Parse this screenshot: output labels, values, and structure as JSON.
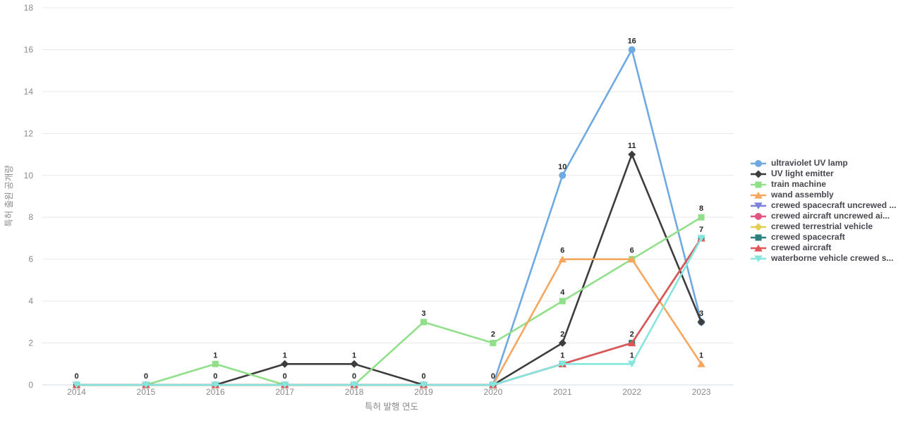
{
  "chart_data": {
    "type": "line",
    "title": "",
    "xlabel": "특허 발행 연도",
    "ylabel": "특허 출원 공개량",
    "x": [
      "2014",
      "2015",
      "2016",
      "2017",
      "2018",
      "2019",
      "2020",
      "2021",
      "2022",
      "2023"
    ],
    "ylim": [
      0,
      18
    ],
    "ytick_step": 2,
    "grid": true,
    "legend_position": "right",
    "point_labels": true,
    "colors": {
      "grid": "#E8E8E8",
      "baseline": "#CFDCE4",
      "axis_text": "#8A8A8A",
      "point_label": "#262626",
      "legend_text": "#47474F"
    },
    "series": [
      {
        "name": "ultraviolet UV lamp",
        "slug": "ultraviolet-uv-lamp",
        "color": "#6FA9E2",
        "marker": "circle",
        "values": [
          0,
          0,
          0,
          0,
          0,
          0,
          0,
          10,
          16,
          3
        ]
      },
      {
        "name": "UV light emitter",
        "slug": "uv-light-emitter",
        "color": "#3D3D3D",
        "marker": "diamond",
        "values": [
          null,
          null,
          0,
          1,
          1,
          0,
          0,
          2,
          11,
          3
        ]
      },
      {
        "name": "train machine",
        "slug": "train-machine",
        "color": "#90E08A",
        "marker": "square",
        "values": [
          null,
          0,
          1,
          0,
          0,
          3,
          2,
          4,
          6,
          8
        ]
      },
      {
        "name": "wand assembly",
        "slug": "wand-assembly",
        "color": "#F5A760",
        "marker": "triangle-up",
        "values": [
          null,
          null,
          null,
          null,
          null,
          null,
          0,
          6,
          6,
          1
        ]
      },
      {
        "name": "crewed spacecraft uncrewed ...",
        "slug": "crewed-spacecraft-uncrewed",
        "color": "#7B80D8",
        "marker": "triangle-down",
        "values": [
          0,
          0,
          0,
          0,
          0,
          0,
          0,
          null,
          null,
          null
        ]
      },
      {
        "name": "crewed aircraft uncrewed ai...",
        "slug": "crewed-aircraft-uncrewed",
        "color": "#E25580",
        "marker": "circle",
        "values": [
          0,
          0,
          0,
          0,
          0,
          0,
          0,
          null,
          null,
          null
        ]
      },
      {
        "name": "crewed terrestrial vehicle",
        "slug": "crewed-terrestrial-vehicle",
        "color": "#E2CD55",
        "marker": "diamond",
        "values": [
          0,
          0,
          0,
          0,
          0,
          0,
          0,
          null,
          null,
          null
        ]
      },
      {
        "name": "crewed spacecraft",
        "slug": "crewed-spacecraft",
        "color": "#2B8080",
        "marker": "square",
        "values": [
          0,
          0,
          0,
          0,
          0,
          0,
          0,
          1,
          2,
          7
        ]
      },
      {
        "name": "crewed aircraft",
        "slug": "crewed-aircraft",
        "color": "#E05555",
        "marker": "triangle-up",
        "values": [
          0,
          0,
          0,
          0,
          0,
          0,
          0,
          1,
          2,
          7
        ]
      },
      {
        "name": "waterborne vehicle crewed s...",
        "slug": "waterborne-vehicle",
        "color": "#86E6DE",
        "marker": "triangle-down",
        "values": [
          0,
          0,
          0,
          0,
          0,
          0,
          0,
          1,
          1,
          7
        ]
      }
    ]
  }
}
